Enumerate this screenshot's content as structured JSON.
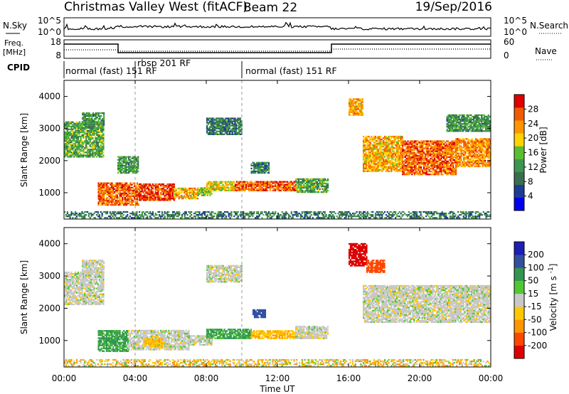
{
  "header": {
    "title": "Christmas Valley West (fitACF)",
    "beam": "Beam 22",
    "date": "19/Sep/2016"
  },
  "nsky_panel": {
    "left_label": "N.Sky",
    "right_label": "N.Search",
    "left_ticks": [
      "10^5",
      "10^0"
    ],
    "right_ticks": [
      "10^5",
      "10^0"
    ]
  },
  "freq_panel": {
    "left_label_1": "Freq.",
    "left_label_2": "[MHz]",
    "right_label": "Nave",
    "left_ticks": [
      "18",
      "8"
    ],
    "right_ticks": [
      "60",
      "0"
    ]
  },
  "cpid_panel": {
    "label": "CPID",
    "segments": [
      {
        "label": "normal (fast) 151 RF",
        "start_hour": 0
      },
      {
        "label": "rbsp 201 RF",
        "start_hour": 4.0
      },
      {
        "label": "normal (fast) 151 RF",
        "start_hour": 10.0
      }
    ]
  },
  "time_axis": {
    "xlabel": "Time UT",
    "tick_labels": [
      "00:00",
      "04:00",
      "08:00",
      "12:00",
      "16:00",
      "20:00",
      "00:00"
    ]
  },
  "colors": {
    "power": [
      "#0000ee",
      "#1e3c96",
      "#3a6e50",
      "#3c9650",
      "#5abe32",
      "#ffd200",
      "#ff9600",
      "#f05a00",
      "#dc0000"
    ],
    "velocity": [
      "#dc0000",
      "#ff4600",
      "#ff9600",
      "#ffc800",
      "#c8c8c8",
      "#50c832",
      "#329650",
      "#3250a0",
      "#1e1eb4"
    ],
    "ground_scatter": "#c8c8c8"
  },
  "chart_data": [
    {
      "type": "heatmap",
      "title": "Power",
      "ylabel": "Slant Range [km]",
      "xlabel": "",
      "xlim": [
        0,
        24
      ],
      "ylim": [
        180,
        4500
      ],
      "yticks": [
        1000,
        2000,
        3000,
        4000
      ],
      "colorbar_label": "Power [dB]",
      "colorbar_tick_labels": [
        "4",
        "8",
        "12",
        "16",
        "20",
        "24",
        "28"
      ],
      "colorbar_range": [
        0,
        32
      ],
      "regions": [
        {
          "t0": 1.9,
          "t1": 4.2,
          "r0": 600,
          "r1": 1300,
          "level": 26
        },
        {
          "t0": 4.2,
          "t1": 6.2,
          "r0": 750,
          "r1": 1250,
          "level": 28
        },
        {
          "t0": 6.2,
          "t1": 7.5,
          "r0": 800,
          "r1": 1150,
          "level": 22
        },
        {
          "t0": 7.5,
          "t1": 8.3,
          "r0": 900,
          "r1": 1150,
          "level": 16
        },
        {
          "t0": 8.0,
          "t1": 9.6,
          "r0": 1050,
          "r1": 1350,
          "level": 20
        },
        {
          "t0": 9.6,
          "t1": 13.0,
          "r0": 1050,
          "r1": 1350,
          "level": 26
        },
        {
          "t0": 13.0,
          "t1": 14.8,
          "r0": 1000,
          "r1": 1450,
          "level": 14
        },
        {
          "t0": 16.8,
          "t1": 19.0,
          "r0": 1650,
          "r1": 2750,
          "level": 22
        },
        {
          "t0": 19.0,
          "t1": 22.0,
          "r0": 1550,
          "r1": 2600,
          "level": 26
        },
        {
          "t0": 22.0,
          "t1": 24.0,
          "r0": 1800,
          "r1": 2700,
          "level": 24
        },
        {
          "t0": 16.0,
          "t1": 16.8,
          "r0": 3400,
          "r1": 3900,
          "level": 22
        },
        {
          "t0": 0.0,
          "t1": 2.2,
          "r0": 2100,
          "r1": 3200,
          "level": 14
        },
        {
          "t0": 1.0,
          "t1": 2.2,
          "r0": 3100,
          "r1": 3500,
          "level": 12
        },
        {
          "t0": 3.0,
          "t1": 4.2,
          "r0": 1600,
          "r1": 2100,
          "level": 12
        },
        {
          "t0": 8.0,
          "t1": 10.0,
          "r0": 2800,
          "r1": 3300,
          "level": 10
        },
        {
          "t0": 10.5,
          "t1": 11.5,
          "r0": 1600,
          "r1": 1950,
          "level": 10
        },
        {
          "t0": 21.5,
          "t1": 24.0,
          "r0": 2900,
          "r1": 3400,
          "level": 12
        },
        {
          "t0": 0.0,
          "t1": 24.0,
          "r0": 200,
          "r1": 400,
          "level": 10
        }
      ]
    },
    {
      "type": "heatmap",
      "title": "Velocity",
      "ylabel": "Slant Range [km]",
      "xlabel": "Time UT",
      "xlim": [
        0,
        24
      ],
      "ylim": [
        180,
        4500
      ],
      "yticks": [
        1000,
        2000,
        3000,
        4000
      ],
      "colorbar_label": "Velocity [m s^-1]",
      "colorbar_tick_labels": [
        "200",
        "100",
        "50",
        "15",
        "-15",
        "-50",
        "-100",
        "-200"
      ],
      "colorbar_range": [
        -250,
        250
      ],
      "regions": [
        {
          "t0": 1.9,
          "t1": 3.6,
          "r0": 650,
          "r1": 1300,
          "value": 60
        },
        {
          "t0": 3.6,
          "t1": 7.0,
          "r0": 700,
          "r1": 1300,
          "value": 0
        },
        {
          "t0": 4.5,
          "t1": 5.5,
          "r0": 800,
          "r1": 1050,
          "value": -40
        },
        {
          "t0": 7.0,
          "t1": 8.3,
          "r0": 850,
          "r1": 1150,
          "value": 0
        },
        {
          "t0": 8.0,
          "t1": 10.5,
          "r0": 1050,
          "r1": 1350,
          "value": 60
        },
        {
          "t0": 10.5,
          "t1": 13.0,
          "r0": 1050,
          "r1": 1300,
          "value": -40
        },
        {
          "t0": 13.0,
          "t1": 14.8,
          "r0": 1050,
          "r1": 1450,
          "value": 0
        },
        {
          "t0": 16.8,
          "t1": 24.0,
          "r0": 1550,
          "r1": 2700,
          "value": 0
        },
        {
          "t0": 0.0,
          "t1": 2.2,
          "r0": 2100,
          "r1": 3100,
          "value": 0
        },
        {
          "t0": 1.0,
          "t1": 2.2,
          "r0": 3100,
          "r1": 3500,
          "value": 0
        },
        {
          "t0": 8.0,
          "t1": 10.0,
          "r0": 2800,
          "r1": 3300,
          "value": 0
        },
        {
          "t0": 16.0,
          "t1": 17.0,
          "r0": 3300,
          "r1": 4000,
          "value": -220
        },
        {
          "t0": 17.0,
          "t1": 18.0,
          "r0": 3100,
          "r1": 3500,
          "value": -150
        },
        {
          "t0": 10.6,
          "t1": 11.3,
          "r0": 1700,
          "r1": 1950,
          "value": 150
        },
        {
          "t0": 0.0,
          "t1": 24.0,
          "r0": 200,
          "r1": 400,
          "value": -30
        }
      ]
    }
  ]
}
